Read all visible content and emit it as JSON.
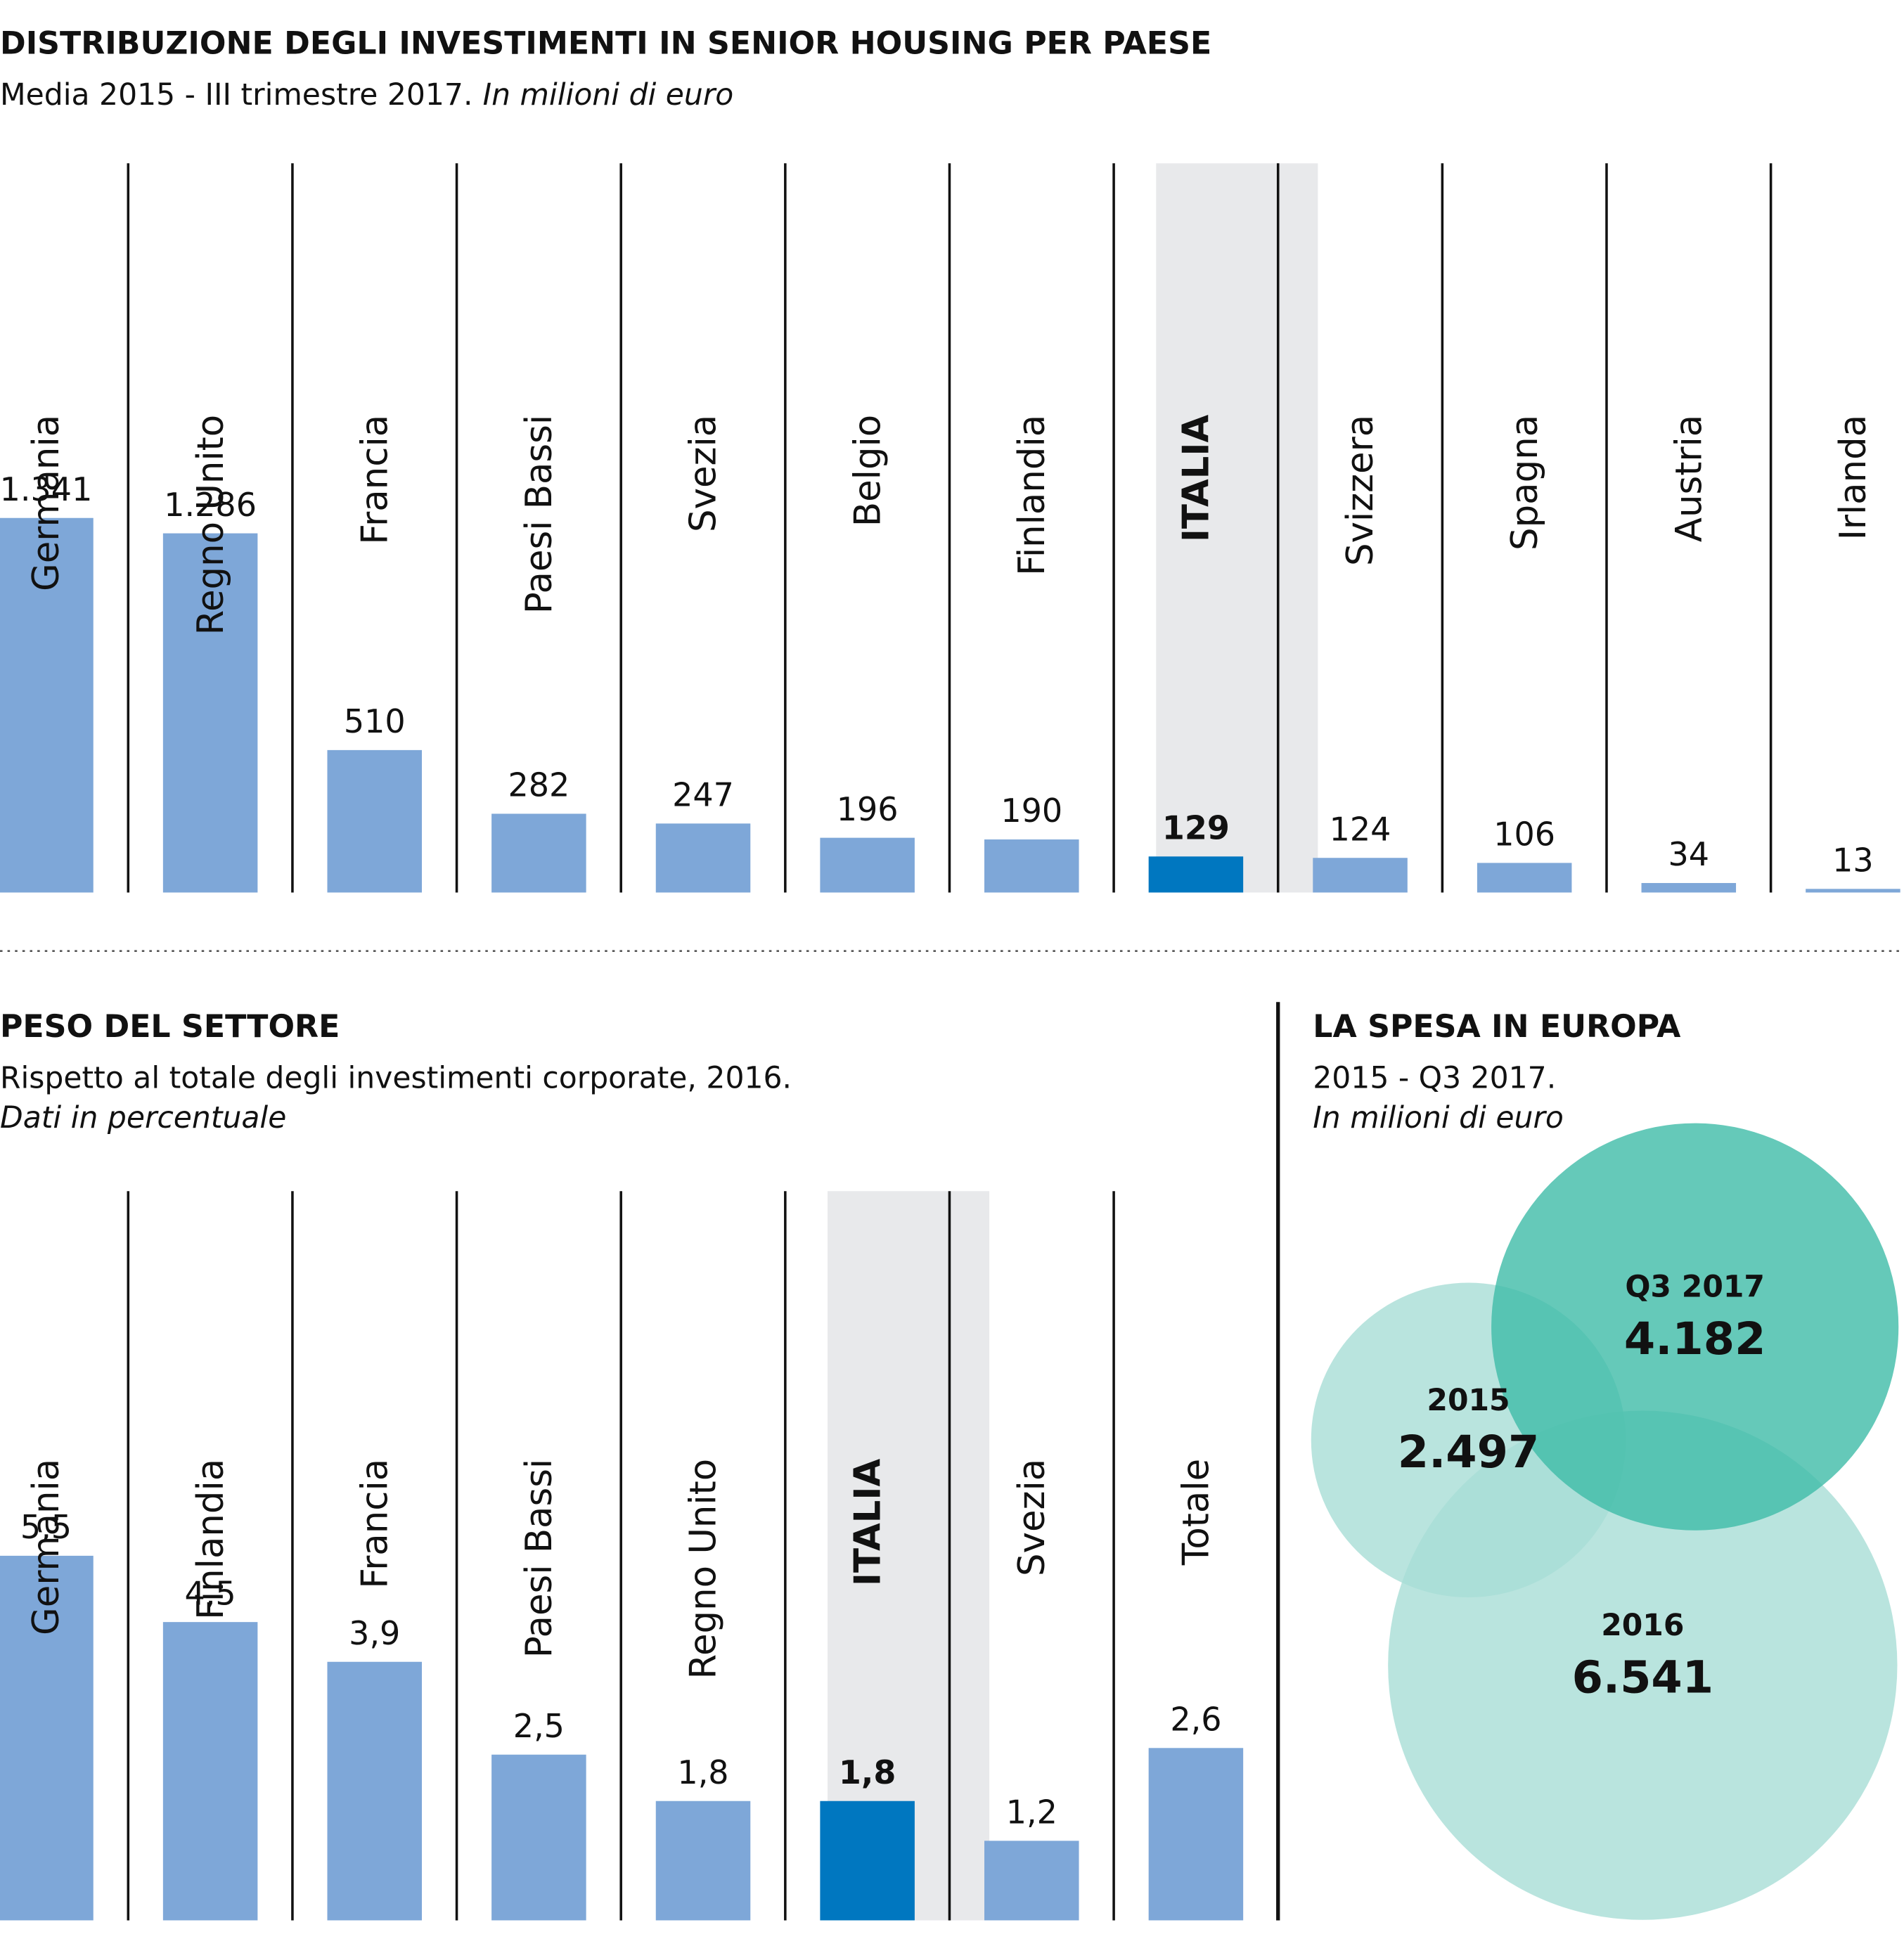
{
  "chart_data": [
    {
      "type": "bar",
      "title": "DISTRIBUZIONE DEGLI INVESTIMENTI IN SENIOR HOUSING PER PAESE",
      "subtitle": "Media 2015 - III trimestre 2017.",
      "unit": "In milioni di euro",
      "categories": [
        "Germania",
        "Regno Unito",
        "Francia",
        "Paesi Bassi",
        "Svezia",
        "Belgio",
        "Finlandia",
        "ITALIA",
        "Svizzera",
        "Spagna",
        "Austria",
        "Irlanda"
      ],
      "values": [
        1341,
        1286,
        510,
        282,
        247,
        196,
        190,
        129,
        124,
        106,
        34,
        13
      ],
      "value_labels": [
        "1.341",
        "1.286",
        "510",
        "282",
        "247",
        "196",
        "190",
        "129",
        "124",
        "106",
        "34",
        "13"
      ],
      "color": "#7ea7d8",
      "highlight": 7,
      "highlight_color": "#0077c0"
    },
    {
      "type": "bar",
      "title": "PESO DEL SETTORE",
      "subtitle": "Rispetto al totale degli investimenti corporate, 2016.",
      "unit": "Dati in percentuale",
      "categories": [
        "Germania",
        "Finlandia",
        "Francia",
        "Paesi Bassi",
        "Regno Unito",
        "ITALIA",
        "Svezia",
        "Totale"
      ],
      "values": [
        5.5,
        4.5,
        3.9,
        2.5,
        1.8,
        1.8,
        1.2,
        2.6
      ],
      "value_labels": [
        "5,5",
        "4,5",
        "3,9",
        "2,5",
        "1,8",
        "1,8",
        "1,2",
        "2,6"
      ],
      "color": "#7ea7d8",
      "highlight": 5,
      "highlight_color": "#0077c0"
    },
    {
      "type": "bubble",
      "title": "LA SPESA IN EUROPA",
      "subtitle": "2015 - Q3 2017.",
      "unit": "In milioni di euro",
      "categories": [
        "2015",
        "2016",
        "Q3 2017"
      ],
      "values": [
        2497,
        6541,
        4182
      ],
      "value_labels": [
        "2.497",
        "6.541",
        "4.182"
      ],
      "colors": [
        "#a8ddd6",
        "#a8ddd6",
        "#3fbba8"
      ]
    }
  ]
}
